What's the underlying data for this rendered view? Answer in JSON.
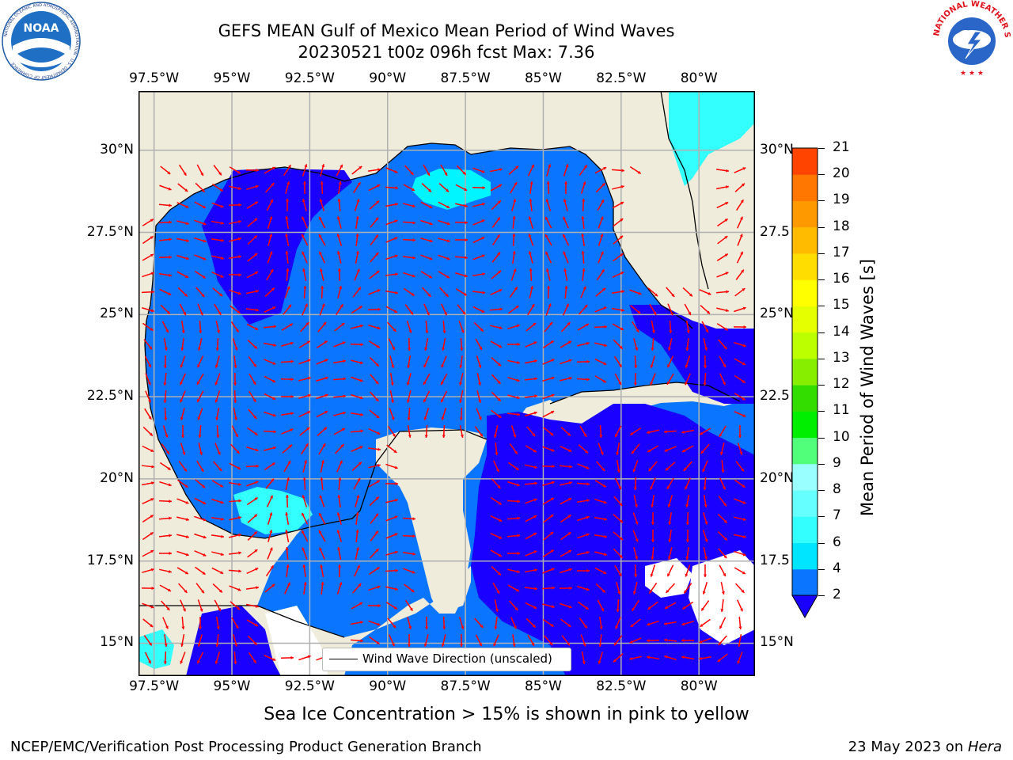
{
  "title": {
    "line1": "GEFS MEAN Gulf of Mexico Mean Period of Wind Waves",
    "line2": "20230521 t00z 096h fcst   Max: 7.36"
  },
  "map": {
    "lon_ticks": [
      "97.5°W",
      "95°W",
      "92.5°W",
      "90°W",
      "87.5°W",
      "85°W",
      "82.5°W",
      "80°W"
    ],
    "lat_ticks_left": [
      "30°N",
      "27.5°N",
      "25°N",
      "22.5°N",
      "20°N",
      "17.5°N",
      "15°N"
    ],
    "lat_ticks_right": [
      "30°N",
      "27.5",
      "25°N",
      "22.5",
      "20°N",
      "17.5",
      "15°N"
    ],
    "lon_range": [
      -98,
      -78.2
    ],
    "lat_range": [
      14,
      31.8
    ],
    "grid": true,
    "land_color": "#efecdc",
    "arrow_color": "#ff0000",
    "legend_label": "Wind Wave Direction (unscaled)"
  },
  "colorbar": {
    "label": "Mean Period of Wind Waves [s]",
    "ticks": [
      "2",
      "4",
      "6",
      "7",
      "8",
      "9",
      "10",
      "11",
      "12",
      "13",
      "14",
      "15",
      "16",
      "17",
      "18",
      "19",
      "20",
      "21"
    ],
    "colors": [
      "#0a76ff",
      "#00e5ff",
      "#33ffff",
      "#66ffff",
      "#99ffff",
      "#52ff7a",
      "#00ee00",
      "#33dd00",
      "#88ee00",
      "#bbff00",
      "#e6ff00",
      "#ffff00",
      "#ffdd00",
      "#ffbb00",
      "#ff9900",
      "#ff7700",
      "#ff4400",
      "#ff0000"
    ],
    "under_color": "#1a00ff"
  },
  "footer": {
    "note": "Sea Ice Concentration > 15% is shown in pink to yellow",
    "credit": "NCEP/EMC/Verification Post Processing Product Generation Branch",
    "date": "23 May 2023 on ",
    "host": "Hera"
  },
  "logos": {
    "noaa_text": "NOAA",
    "noaa_ring": "NATIONAL OCEANIC AND ATMOSPHERIC ADMINISTRATION · U.S. DEPARTMENT OF COMMERCE",
    "nws_ring": "NATIONAL WEATHER SERVICE"
  }
}
